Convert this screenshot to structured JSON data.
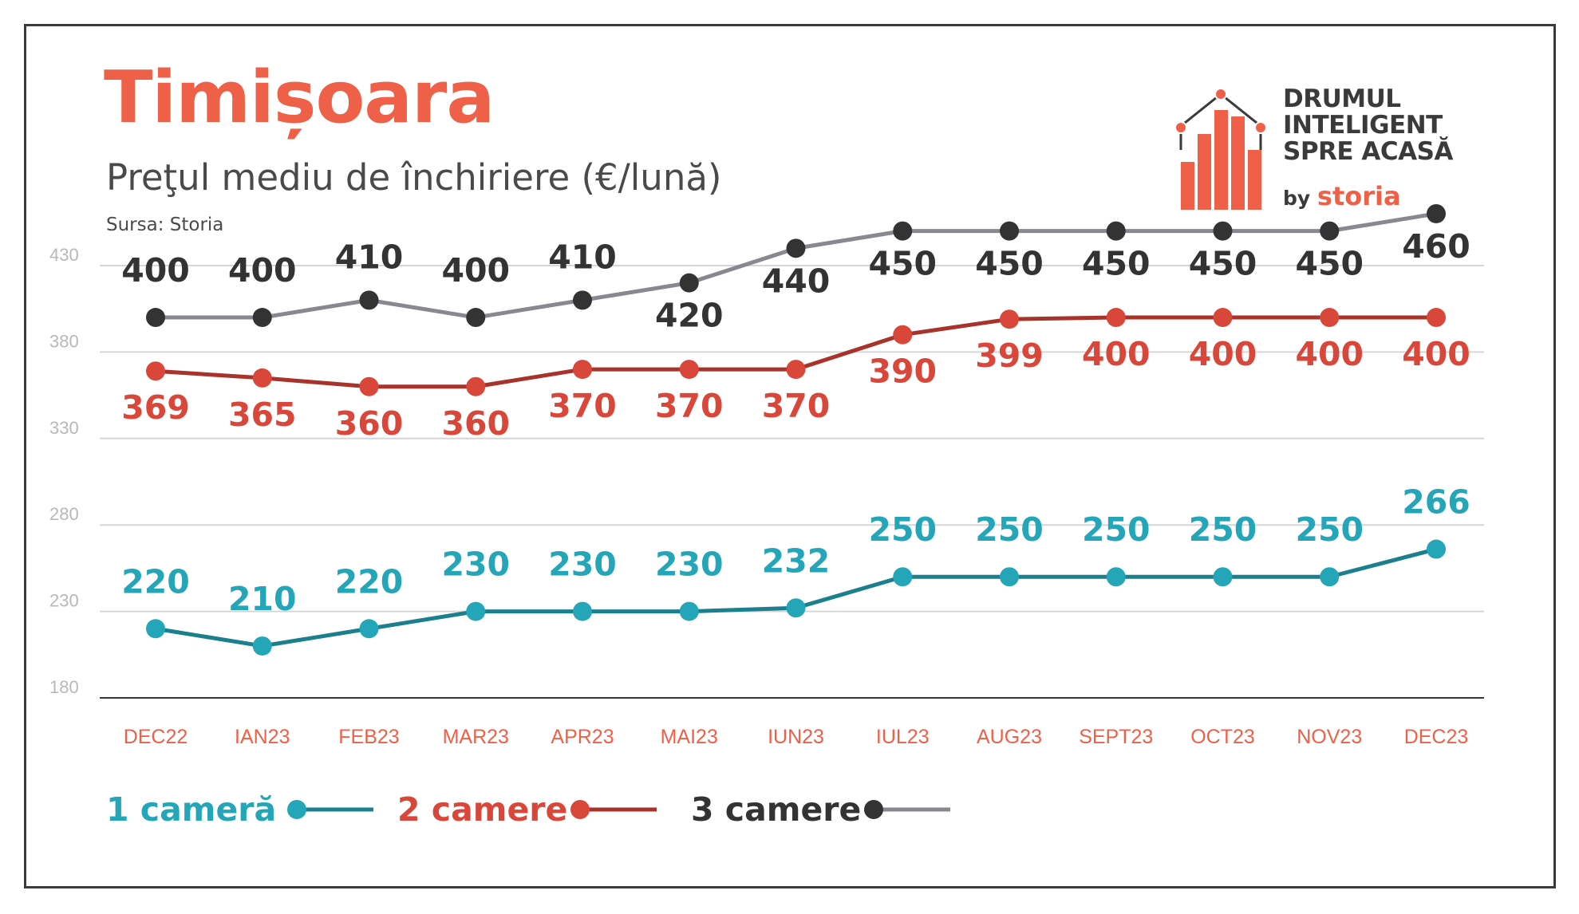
{
  "header": {
    "title": "Timișoara",
    "subtitle": "Preţul mediu de închiriere (€/lună)",
    "source": "Sursa: Storia"
  },
  "logo": {
    "line1": "DRUMUL",
    "line2": "INTELIGENT",
    "line3": "SPRE ACASĂ",
    "by": "by",
    "brand": "storia",
    "color": "#ee6048"
  },
  "chart_data": {
    "type": "line",
    "categories": [
      "DEC22",
      "IAN23",
      "FEB23",
      "MAR23",
      "APR23",
      "MAI23",
      "IUN23",
      "IUL23",
      "AUG23",
      "SEPT23",
      "OCT23",
      "NOV23",
      "DEC23"
    ],
    "ylim": [
      180,
      450
    ],
    "yticks": [
      180,
      230,
      280,
      330,
      380,
      430
    ],
    "grid": true,
    "series": [
      {
        "name": "1 cameră",
        "color": "#25a6b8",
        "line_color": "#1b7f8d",
        "label_color": "#25a6b8",
        "values": [
          220,
          210,
          220,
          230,
          230,
          230,
          232,
          250,
          250,
          250,
          250,
          250,
          266
        ]
      },
      {
        "name": "2 camere",
        "color": "#d9473a",
        "line_color": "#a8332a",
        "label_color": "#d9473a",
        "values": [
          369,
          365,
          360,
          360,
          370,
          370,
          370,
          390,
          399,
          400,
          400,
          400,
          400
        ]
      },
      {
        "name": "3 camere",
        "color": "#333333",
        "line_color": "#8a8790",
        "label_color": "#333333",
        "values": [
          400,
          400,
          410,
          400,
          410,
          420,
          440,
          450,
          450,
          450,
          450,
          450,
          460
        ]
      }
    ],
    "xlabel_color": "#ee6048"
  }
}
